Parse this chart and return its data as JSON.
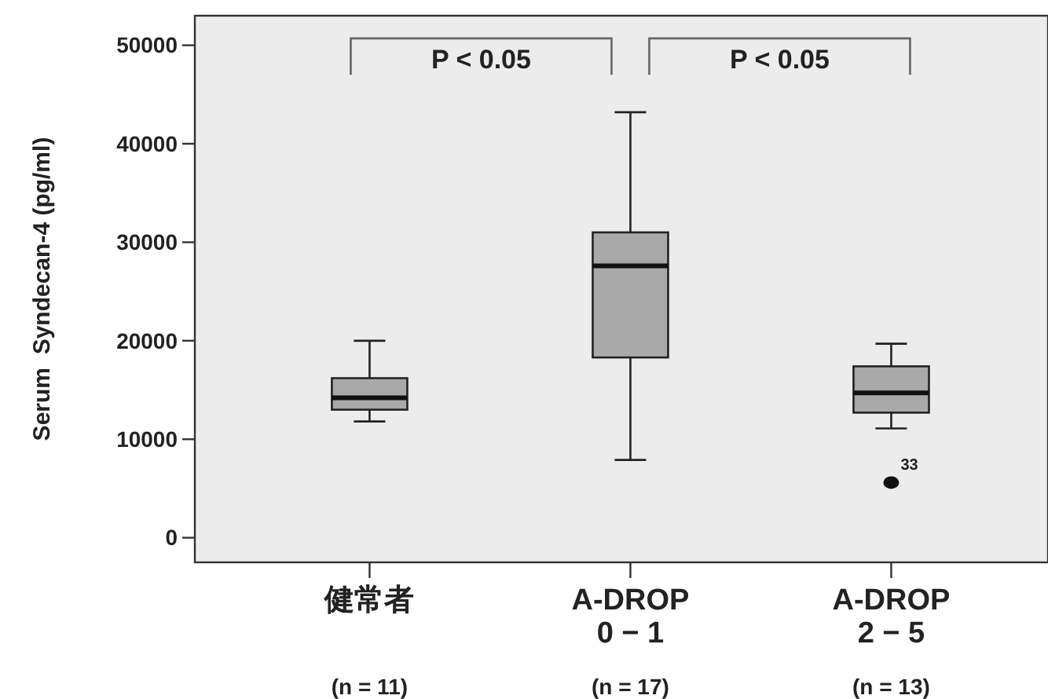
{
  "chart_data": {
    "type": "box",
    "categories": [
      "健常者\n\n(n = 11)",
      "A-DROP\n0 − 1\n(n = 17)",
      "A-DROP\n2 − 5\n(n = 13)"
    ],
    "ylabel": "Serum  Syndecan-4 (pg/ml)",
    "ylim": [
      -2500,
      53000
    ],
    "yticks": [
      0,
      10000,
      20000,
      30000,
      40000,
      50000
    ],
    "grid": false,
    "color": "#a9a9a9",
    "boxes": [
      {
        "low": 11800,
        "q1": 13000,
        "median": 14200,
        "q3": 16200,
        "high": 20000
      },
      {
        "low": 7900,
        "q1": 18300,
        "median": 27600,
        "q3": 31000,
        "high": 43200
      },
      {
        "low": 11100,
        "q1": 12700,
        "median": 14700,
        "q3": 17400,
        "high": 19700,
        "outliers": [
          5600
        ]
      }
    ],
    "annotations": [
      "P < 0.05",
      "P < 0.05",
      "33"
    ]
  }
}
